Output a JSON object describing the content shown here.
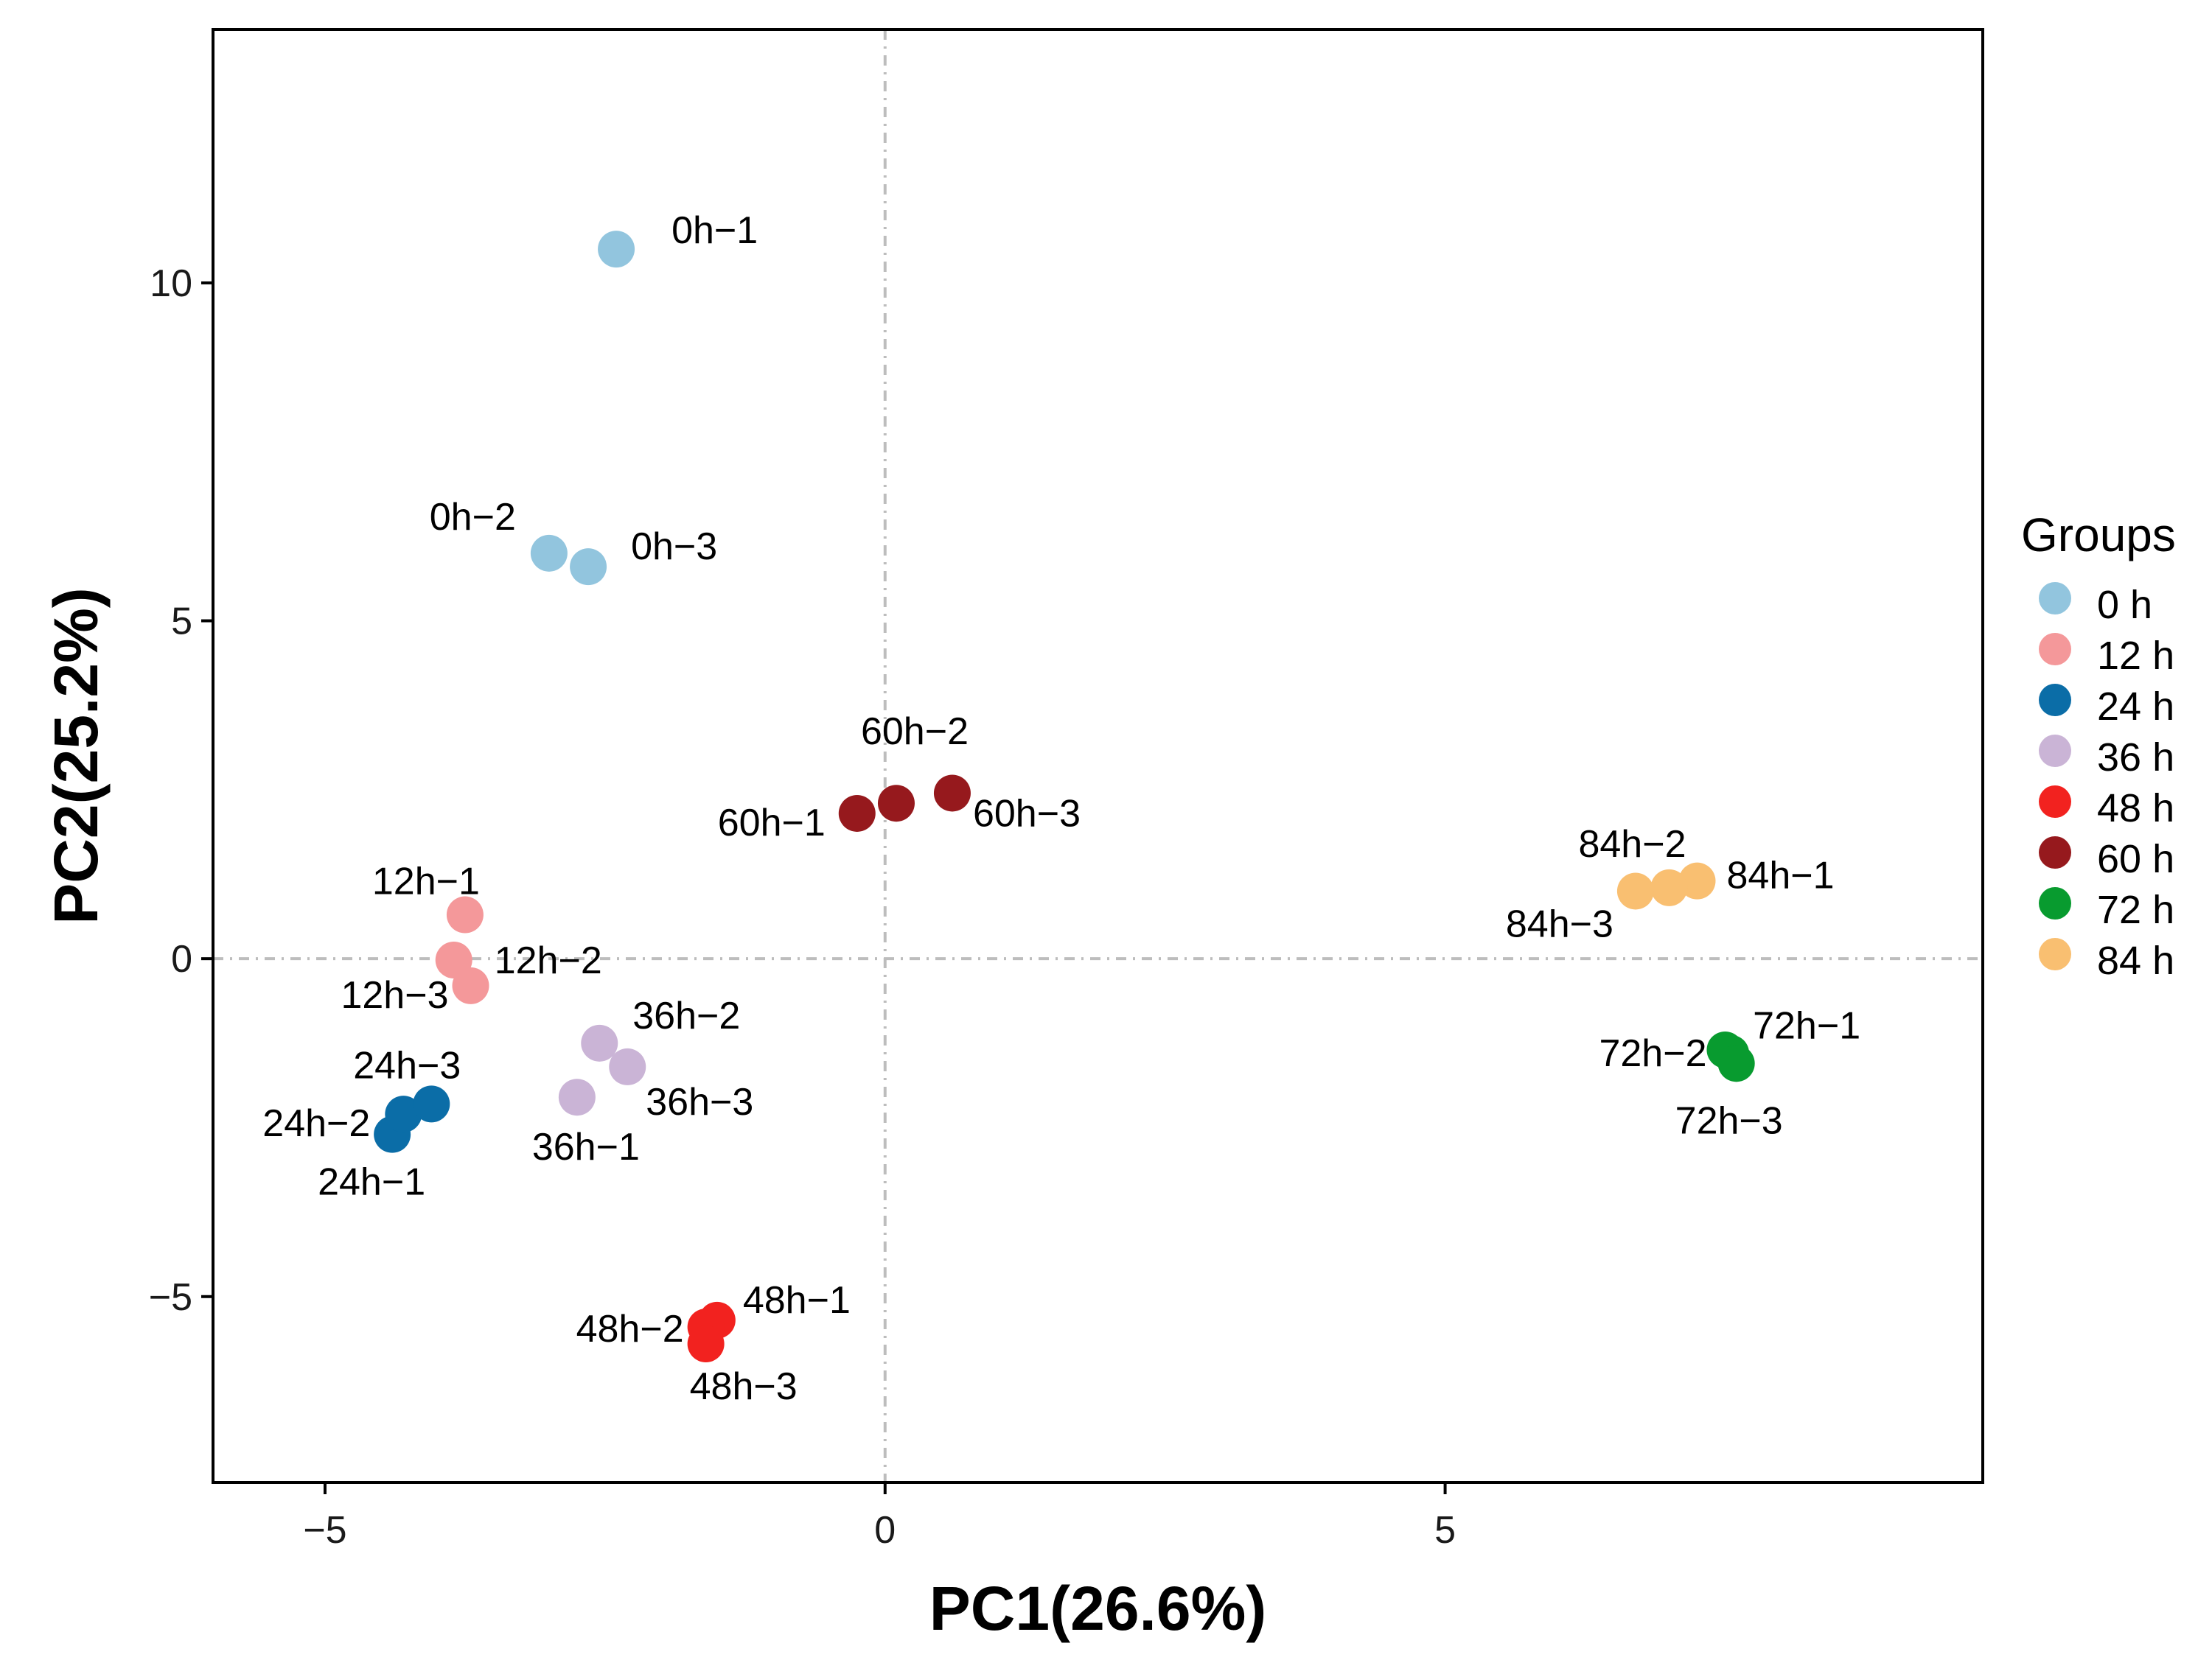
{
  "chart_data": {
    "type": "scatter",
    "xlabel": "PC1(26.6%)",
    "ylabel": "PC2(25.2%)",
    "xlim": [
      -6.0,
      9.8
    ],
    "ylim": [
      -7.75,
      13.75
    ],
    "xticks": [
      -5,
      0,
      5
    ],
    "xtick_labels": [
      "−5",
      "0",
      "5"
    ],
    "yticks": [
      -5,
      0,
      5,
      10
    ],
    "ytick_labels": [
      "−5",
      "0",
      "5",
      "10"
    ],
    "reference_lines": {
      "x": 0,
      "y": 0,
      "style": "dot-dash",
      "color": "#bdbdbd"
    },
    "grid": false,
    "legend": {
      "title": "Groups",
      "position": "right"
    },
    "series": [
      {
        "name": "0 h",
        "color": "#92c5de",
        "points": [
          {
            "label": "0h−1",
            "x": -2.4,
            "y": 10.5
          },
          {
            "label": "0h−2",
            "x": -3.0,
            "y": 6.0
          },
          {
            "label": "0h−3",
            "x": -2.65,
            "y": 5.8
          }
        ]
      },
      {
        "name": "12 h",
        "color": "#f4989a",
        "points": [
          {
            "label": "12h−1",
            "x": -3.75,
            "y": 0.65
          },
          {
            "label": "12h−2",
            "x": -3.85,
            "y": -0.02
          },
          {
            "label": "12h−3",
            "x": -3.7,
            "y": -0.4
          }
        ]
      },
      {
        "name": "24 h",
        "color": "#0b6da7",
        "points": [
          {
            "label": "24h−1",
            "x": -4.4,
            "y": -2.6
          },
          {
            "label": "24h−2",
            "x": -4.3,
            "y": -2.3
          },
          {
            "label": "24h−3",
            "x": -4.05,
            "y": -2.15
          }
        ]
      },
      {
        "name": "36 h",
        "color": "#cab4d6",
        "points": [
          {
            "label": "36h−1",
            "x": -2.75,
            "y": -2.05
          },
          {
            "label": "36h−2",
            "x": -2.55,
            "y": -1.25
          },
          {
            "label": "36h−3",
            "x": -2.3,
            "y": -1.6
          }
        ]
      },
      {
        "name": "48 h",
        "color": "#f2221f",
        "points": [
          {
            "label": "48h−1",
            "x": -1.5,
            "y": -5.35
          },
          {
            "label": "48h−2",
            "x": -1.6,
            "y": -5.45
          },
          {
            "label": "48h−3",
            "x": -1.6,
            "y": -5.7
          }
        ]
      },
      {
        "name": "60 h",
        "color": "#96191d",
        "points": [
          {
            "label": "60h−1",
            "x": -0.25,
            "y": 2.15
          },
          {
            "label": "60h−2",
            "x": 0.1,
            "y": 2.3
          },
          {
            "label": "60h−3",
            "x": 0.6,
            "y": 2.45
          }
        ]
      },
      {
        "name": "72 h",
        "color": "#089b2f",
        "points": [
          {
            "label": "72h−1",
            "x": 7.55,
            "y": -1.4
          },
          {
            "label": "72h−2",
            "x": 7.5,
            "y": -1.35
          },
          {
            "label": "72h−3",
            "x": 7.6,
            "y": -1.55
          }
        ]
      },
      {
        "name": "84 h",
        "color": "#f9bf71",
        "points": [
          {
            "label": "84h−1",
            "x": 7.25,
            "y": 1.15
          },
          {
            "label": "84h−2",
            "x": 7.0,
            "y": 1.05
          },
          {
            "label": "84h−3",
            "x": 6.7,
            "y": 1.0
          }
        ]
      }
    ]
  }
}
